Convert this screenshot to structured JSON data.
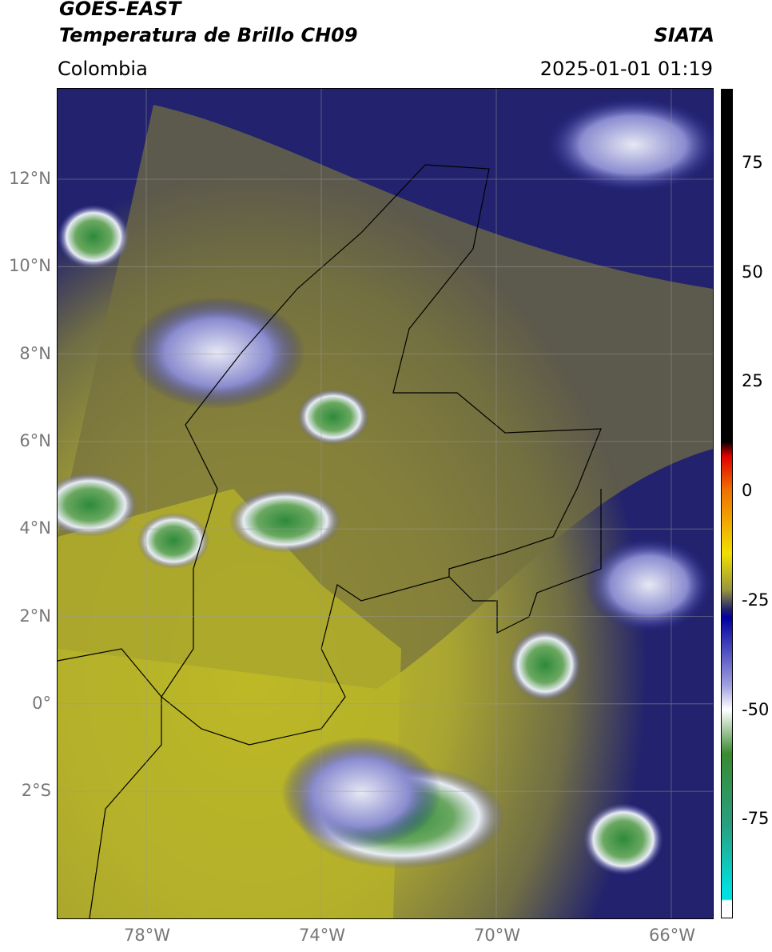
{
  "header": {
    "satellite": "GOES-EAST",
    "product": "Temperatura de Brillo CH09",
    "region": "Colombia",
    "source": "SIATA",
    "datetime": "2025-01-01 01:19"
  },
  "map": {
    "lat_labels": [
      "12°N",
      "10°N",
      "8°N",
      "6°N",
      "4°N",
      "2°N",
      "0°",
      "2°S"
    ],
    "lon_labels": [
      "78°W",
      "74°W",
      "70°W",
      "66°W"
    ]
  },
  "colorbar": {
    "ticks": [
      75,
      50,
      25,
      0,
      -25,
      -50,
      -75
    ]
  }
}
